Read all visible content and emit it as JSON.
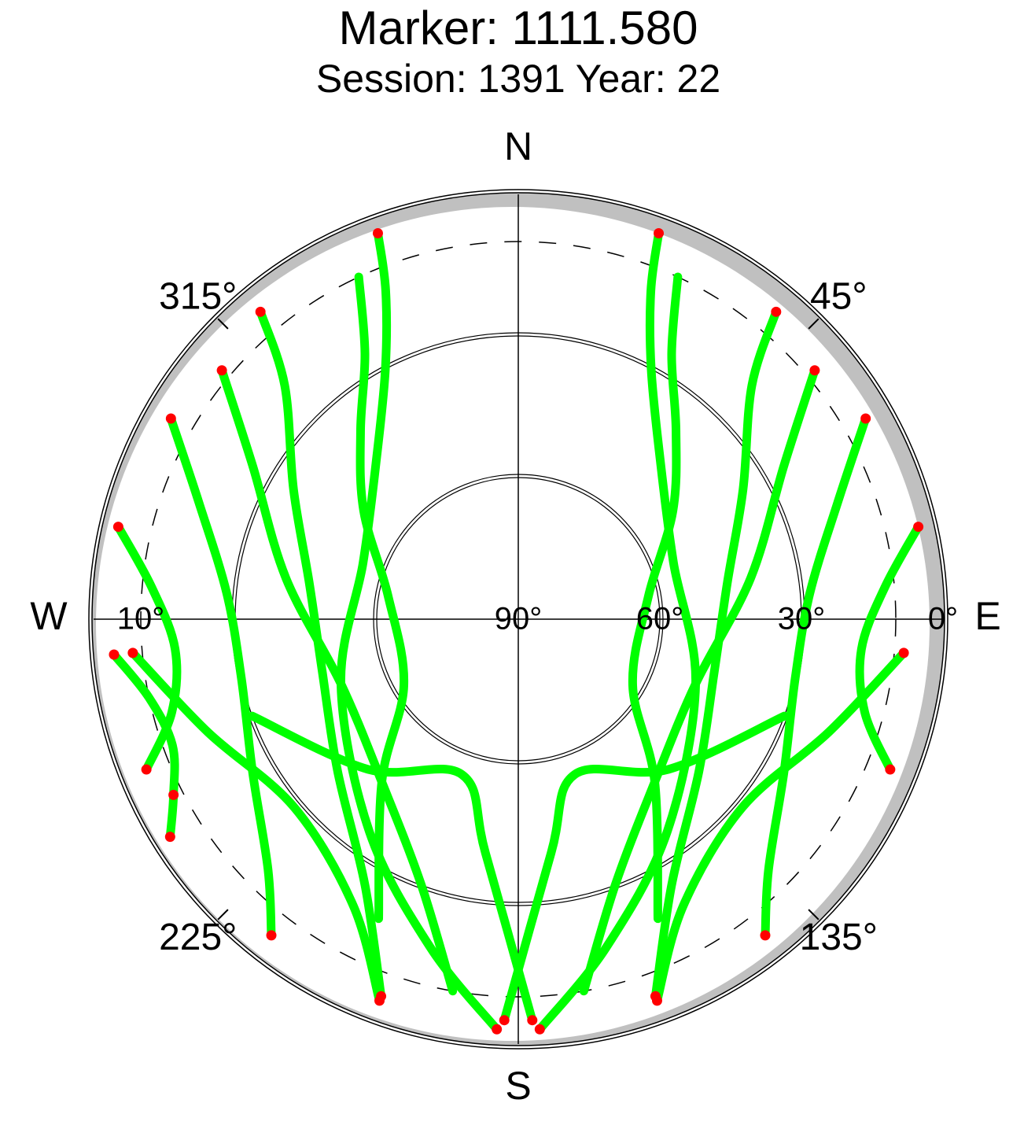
{
  "chart_data": {
    "type": "skyplot",
    "title": "Marker: 1111.580",
    "subtitle": "Session: 1391 Year: 22",
    "compass": [
      {
        "value": 0,
        "label": "N"
      },
      {
        "value": 90,
        "label": "E"
      },
      {
        "value": 180,
        "label": "S"
      },
      {
        "value": 270,
        "label": "W"
      }
    ],
    "azimuth_ticks": [
      {
        "value": 45,
        "label": "45°"
      },
      {
        "value": 135,
        "label": "135°"
      },
      {
        "value": 225,
        "label": "225°"
      },
      {
        "value": 315,
        "label": "315°"
      }
    ],
    "elevation_ticks": [
      {
        "value": 90,
        "label": "90°"
      },
      {
        "value": 60,
        "label": "60°"
      },
      {
        "value": 30,
        "label": "30°"
      },
      {
        "value": 0,
        "label": "0°"
      }
    ],
    "elevation_mask": {
      "value": 10,
      "label": "10°"
    },
    "track_color": "#00ff00",
    "low_color": "#ff0000",
    "tracks": [
      {
        "az": [
          340,
          338,
          332,
          318,
          290,
          250,
          215,
          195,
          183
        ],
        "el": [
          3,
          15,
          30,
          45,
          55,
          50,
          35,
          18,
          3
        ]
      },
      {
        "az": [
          320,
          315,
          300,
          280,
          255,
          230,
          210,
          200
        ],
        "el": [
          5,
          20,
          35,
          45,
          47,
          40,
          25,
          5
        ]
      },
      {
        "az": [
          300,
          290,
          275,
          258,
          240,
          225,
          218
        ],
        "el": [
          5,
          18,
          28,
          30,
          25,
          15,
          5
        ]
      },
      {
        "az": [
          283,
          275,
          265,
          255,
          248
        ],
        "el": [
          3,
          12,
          17,
          14,
          5
        ]
      },
      {
        "az": [
          265,
          258,
          250,
          243,
          238
        ],
        "el": [
          4,
          10,
          12,
          8,
          3
        ]
      },
      {
        "az": [
          310,
          300,
          280,
          250,
          220,
          200,
          190
        ],
        "el": [
          8,
          25,
          40,
          50,
          45,
          30,
          10
        ]
      },
      {
        "az": [
          335,
          330,
          320,
          305,
          280,
          240,
          220,
          205
        ],
        "el": [
          10,
          25,
          38,
          50,
          62,
          62,
          45,
          20
        ]
      },
      {
        "az": [
          20,
          22,
          28,
          42,
          70,
          110,
          145,
          165,
          177
        ],
        "el": [
          3,
          15,
          30,
          45,
          55,
          50,
          35,
          18,
          3
        ]
      },
      {
        "az": [
          40,
          45,
          60,
          80,
          105,
          130,
          150,
          160
        ],
        "el": [
          5,
          20,
          35,
          45,
          47,
          40,
          25,
          5
        ]
      },
      {
        "az": [
          60,
          70,
          85,
          102,
          120,
          135,
          142
        ],
        "el": [
          5,
          18,
          28,
          30,
          25,
          15,
          5
        ]
      },
      {
        "az": [
          77,
          85,
          95,
          105,
          112
        ],
        "el": [
          3,
          12,
          17,
          14,
          5
        ]
      },
      {
        "az": [
          50,
          60,
          80,
          110,
          140,
          160,
          170
        ],
        "el": [
          8,
          25,
          40,
          50,
          45,
          30,
          10
        ]
      },
      {
        "az": [
          25,
          30,
          40,
          55,
          80,
          120,
          140,
          155
        ],
        "el": [
          10,
          25,
          38,
          50,
          62,
          62,
          45,
          20
        ]
      },
      {
        "az": [
          95,
          110,
          130,
          150,
          160
        ],
        "el": [
          8,
          20,
          28,
          20,
          4
        ]
      },
      {
        "az": [
          265,
          250,
          230,
          210,
          200
        ],
        "el": [
          8,
          20,
          28,
          20,
          4
        ]
      },
      {
        "az": [
          250,
          225,
          200,
          188,
          178
        ],
        "el": [
          30,
          45,
          55,
          40,
          5
        ]
      },
      {
        "az": [
          110,
          135,
          160,
          172,
          182
        ],
        "el": [
          30,
          45,
          55,
          40,
          5
        ]
      }
    ]
  }
}
